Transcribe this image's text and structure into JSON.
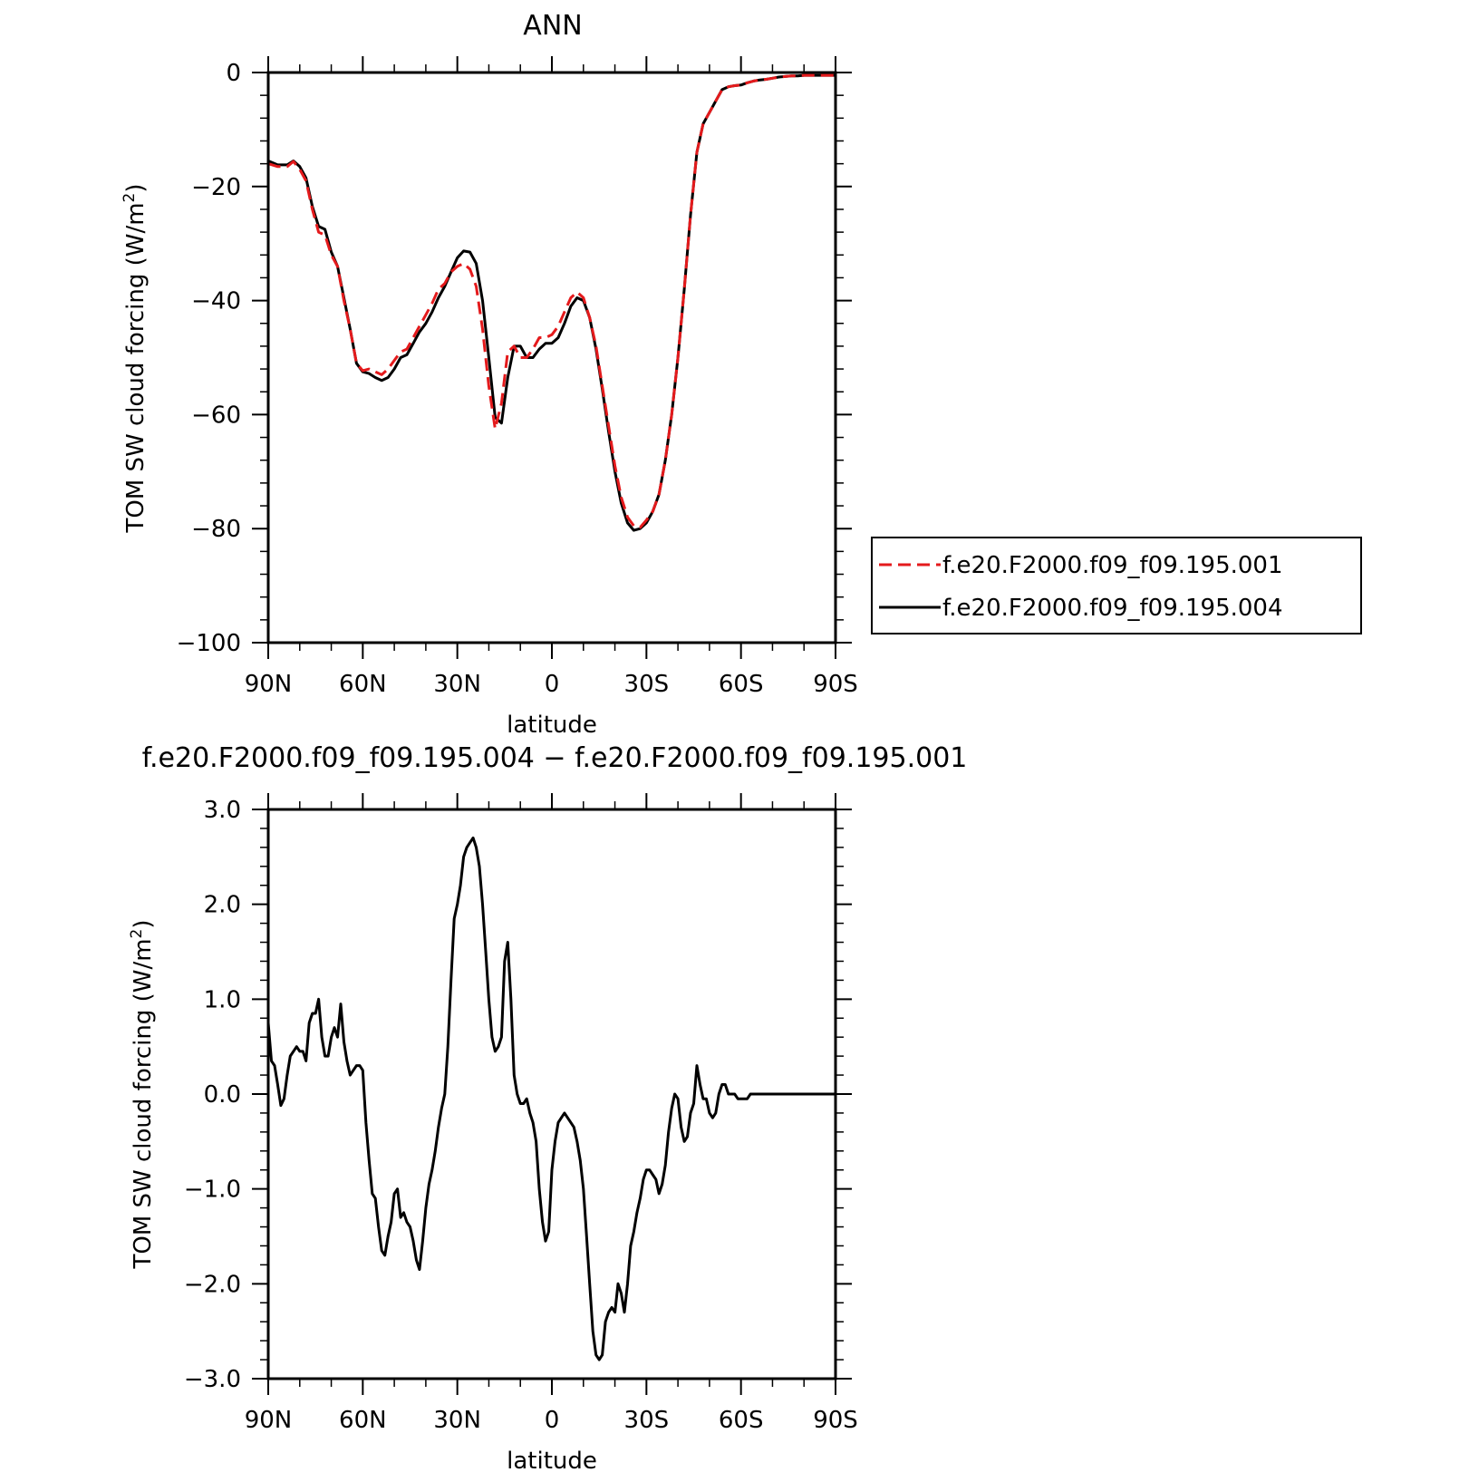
{
  "chart_data": [
    {
      "type": "line",
      "title": "ANN",
      "xlabel": "latitude",
      "ylabel": "TOM SW cloud forcing (W/m²)",
      "ylabel_main": "TOM SW cloud forcing (W/m",
      "ylabel_sup": "2",
      "ylabel_close": ")",
      "xlim": [
        90,
        -90
      ],
      "ylim": [
        -100,
        0
      ],
      "x_ticks": [
        90,
        60,
        30,
        0,
        -30,
        -60,
        -90
      ],
      "x_tick_labels": [
        "90N",
        "60N",
        "30N",
        "0",
        "30S",
        "60S",
        "90S"
      ],
      "y_ticks": [
        0,
        -20,
        -40,
        -60,
        -80,
        -100
      ],
      "y_tick_labels": [
        "0",
        "−20",
        "−40",
        "−60",
        "−80",
        "−100"
      ],
      "legend_position": "right",
      "series": [
        {
          "name": "f.e20.F2000.f09_f09.195.001",
          "color": "#e41a1c",
          "style": "dashed",
          "x": [
            90,
            87,
            84,
            82,
            80,
            78,
            76,
            74,
            72,
            70,
            68,
            66,
            64,
            62,
            60,
            58,
            56,
            54,
            52,
            50,
            48,
            46,
            44,
            42,
            40,
            38,
            36,
            34,
            32,
            30,
            28,
            26,
            24,
            22,
            20,
            18,
            16,
            14,
            12,
            10,
            8,
            6,
            4,
            2,
            0,
            -2,
            -4,
            -6,
            -8,
            -10,
            -12,
            -14,
            -16,
            -18,
            -20,
            -22,
            -24,
            -26,
            -28,
            -30,
            -32,
            -34,
            -36,
            -38,
            -40,
            -42,
            -44,
            -46,
            -48,
            -50,
            -52,
            -54,
            -56,
            -58,
            -60,
            -62,
            -64,
            -66,
            -68,
            -70,
            -72,
            -74,
            -76,
            -78,
            -80,
            -82,
            -84,
            -86,
            -88,
            -90
          ],
          "y": [
            -16,
            -16.5,
            -16.5,
            -15.6,
            -17,
            -19,
            -24,
            -28,
            -28.5,
            -32,
            -34,
            -40,
            -45,
            -51,
            -52.3,
            -52,
            -52.5,
            -53,
            -52,
            -50.5,
            -49,
            -48.5,
            -46.5,
            -44.5,
            -42.5,
            -40.5,
            -38,
            -37,
            -35,
            -34,
            -33.5,
            -34.5,
            -37.5,
            -45,
            -55,
            -62.5,
            -58,
            -49,
            -48,
            -50,
            -50,
            -48.5,
            -46.5,
            -46.5,
            -46,
            -44.5,
            -42,
            -39.5,
            -38.5,
            -39.5,
            -43,
            -48,
            -55,
            -62,
            -69,
            -74.5,
            -78,
            -79.5,
            -79.8,
            -78.5,
            -77,
            -74,
            -68,
            -60,
            -50,
            -38,
            -25,
            -14,
            -9,
            -7,
            -5,
            -3,
            -2.5,
            -2.3,
            -2.2,
            -1.8,
            -1.5,
            -1.3,
            -1.2,
            -1.0,
            -0.8,
            -0.7,
            -0.6,
            -0.6,
            -0.5,
            -0.5,
            -0.5,
            -0.5,
            -0.5,
            -0.5
          ]
        },
        {
          "name": "f.e20.F2000.f09_f09.195.004",
          "color": "#000000",
          "style": "solid",
          "x": [
            90,
            87,
            84,
            82,
            80,
            78,
            76,
            74,
            72,
            70,
            68,
            66,
            64,
            62,
            60,
            58,
            56,
            54,
            52,
            50,
            48,
            46,
            44,
            42,
            40,
            38,
            36,
            34,
            32,
            30,
            28,
            26,
            24,
            22,
            20,
            18,
            16,
            14,
            12,
            10,
            8,
            6,
            4,
            2,
            0,
            -2,
            -4,
            -6,
            -8,
            -10,
            -12,
            -14,
            -16,
            -18,
            -20,
            -22,
            -24,
            -26,
            -28,
            -30,
            -32,
            -34,
            -36,
            -38,
            -40,
            -42,
            -44,
            -46,
            -48,
            -50,
            -52,
            -54,
            -56,
            -58,
            -60,
            -62,
            -64,
            -66,
            -68,
            -70,
            -72,
            -74,
            -76,
            -78,
            -80,
            -82,
            -84,
            -86,
            -88,
            -90
          ],
          "y": [
            -15.5,
            -16.2,
            -16.2,
            -15.5,
            -16.5,
            -18.5,
            -23.5,
            -27,
            -27.5,
            -31.5,
            -34,
            -39.5,
            -45,
            -51,
            -52.5,
            -52.8,
            -53.5,
            -54,
            -53.5,
            -52,
            -50,
            -49.5,
            -47.5,
            -45.5,
            -44,
            -42,
            -39.5,
            -37.5,
            -35,
            -32.5,
            -31.3,
            -31.5,
            -33.5,
            -40,
            -50,
            -60.5,
            -61.5,
            -53.5,
            -48,
            -48,
            -50,
            -50,
            -48.5,
            -47.5,
            -47.5,
            -46.5,
            -44,
            -41,
            -39.5,
            -40,
            -43,
            -48.5,
            -55.5,
            -63,
            -70,
            -75.5,
            -79,
            -80.3,
            -80,
            -79,
            -77,
            -74,
            -68,
            -60,
            -50,
            -38,
            -25,
            -14,
            -9,
            -7,
            -5,
            -3,
            -2.5,
            -2.3,
            -2.2,
            -1.8,
            -1.5,
            -1.3,
            -1.2,
            -1.0,
            -0.8,
            -0.7,
            -0.6,
            -0.6,
            -0.5,
            -0.5,
            -0.5,
            -0.5,
            -0.5,
            -0.5
          ]
        }
      ]
    },
    {
      "type": "line",
      "title": "f.e20.F2000.f09_f09.195.004 − f.e20.F2000.f09_f09.195.001",
      "xlabel": "latitude",
      "ylabel": "TOM SW cloud forcing (W/m²)",
      "ylabel_main": "TOM SW cloud forcing (W/m",
      "ylabel_sup": "2",
      "ylabel_close": ")",
      "xlim": [
        90,
        -90
      ],
      "ylim": [
        -3.0,
        3.0
      ],
      "x_ticks": [
        90,
        60,
        30,
        0,
        -30,
        -60,
        -90
      ],
      "x_tick_labels": [
        "90N",
        "60N",
        "30N",
        "0",
        "30S",
        "60S",
        "90S"
      ],
      "y_ticks": [
        3,
        2,
        1,
        0,
        -1,
        -2,
        -3
      ],
      "y_tick_labels": [
        "3.0",
        "2.0",
        "1.0",
        "0.0",
        "−1.0",
        "−2.0",
        "−3.0"
      ],
      "series": [
        {
          "color": "#000000",
          "style": "solid",
          "x": [
            90,
            89,
            88,
            87,
            86,
            85,
            84,
            83,
            82,
            81,
            80,
            79,
            78,
            77,
            76,
            75,
            74,
            73,
            72,
            71,
            70,
            69,
            68,
            67,
            66,
            65,
            64,
            63,
            62,
            61,
            60,
            59,
            58,
            57,
            56,
            55,
            54,
            53,
            52,
            51,
            50,
            49,
            48,
            47,
            46,
            45,
            44,
            43,
            42,
            41,
            40,
            39,
            38,
            37,
            36,
            35,
            34,
            33,
            32,
            31,
            30,
            29,
            28,
            27,
            26,
            25,
            24,
            23,
            22,
            21,
            20,
            19,
            18,
            17,
            16,
            15,
            14,
            13,
            12,
            11,
            10,
            9,
            8,
            7,
            6,
            5,
            4,
            3,
            2,
            1,
            0,
            -1,
            -2,
            -3,
            -4,
            -5,
            -6,
            -7,
            -8,
            -9,
            -10,
            -11,
            -12,
            -13,
            -14,
            -15,
            -16,
            -17,
            -18,
            -19,
            -20,
            -21,
            -22,
            -23,
            -24,
            -25,
            -26,
            -27,
            -28,
            -29,
            -30,
            -31,
            -32,
            -33,
            -34,
            -35,
            -36,
            -37,
            -38,
            -39,
            -40,
            -41,
            -42,
            -43,
            -44,
            -45,
            -46,
            -47,
            -48,
            -49,
            -50,
            -51,
            -52,
            -53,
            -54,
            -55,
            -56,
            -57,
            -58,
            -59,
            -60,
            -61,
            -62,
            -63,
            -64,
            -65,
            -66,
            -67,
            -68,
            -69,
            -70,
            -71,
            -72,
            -73,
            -74,
            -75,
            -76,
            -77,
            -78,
            -79,
            -80,
            -81,
            -82,
            -83,
            -84,
            -85,
            -86,
            -87,
            -88,
            -89,
            -90
          ],
          "y": [
            0.75,
            0.35,
            0.3,
            0.1,
            -0.12,
            -0.05,
            0.2,
            0.4,
            0.45,
            0.5,
            0.45,
            0.45,
            0.35,
            0.75,
            0.85,
            0.85,
            1.0,
            0.6,
            0.4,
            0.4,
            0.6,
            0.7,
            0.6,
            0.95,
            0.55,
            0.35,
            0.2,
            0.25,
            0.3,
            0.3,
            0.25,
            -0.3,
            -0.7,
            -1.05,
            -1.1,
            -1.4,
            -1.65,
            -1.7,
            -1.5,
            -1.35,
            -1.05,
            -1.0,
            -1.3,
            -1.25,
            -1.35,
            -1.4,
            -1.55,
            -1.75,
            -1.85,
            -1.55,
            -1.2,
            -0.95,
            -0.8,
            -0.6,
            -0.35,
            -0.15,
            0.0,
            0.5,
            1.2,
            1.85,
            2.0,
            2.2,
            2.5,
            2.6,
            2.65,
            2.7,
            2.6,
            2.4,
            2.0,
            1.5,
            1.0,
            0.6,
            0.45,
            0.5,
            0.6,
            1.4,
            1.6,
            1.0,
            0.2,
            0.0,
            -0.1,
            -0.1,
            -0.05,
            -0.2,
            -0.3,
            -0.5,
            -1.0,
            -1.35,
            -1.55,
            -1.45,
            -0.8,
            -0.5,
            -0.3,
            -0.25,
            -0.2,
            -0.25,
            -0.3,
            -0.35,
            -0.5,
            -0.7,
            -1.0,
            -1.5,
            -2.0,
            -2.5,
            -2.75,
            -2.8,
            -2.75,
            -2.4,
            -2.3,
            -2.25,
            -2.3,
            -2.0,
            -2.1,
            -2.3,
            -2.0,
            -1.6,
            -1.45,
            -1.25,
            -1.1,
            -0.9,
            -0.8,
            -0.8,
            -0.85,
            -0.9,
            -1.05,
            -0.95,
            -0.75,
            -0.4,
            -0.15,
            0.0,
            -0.05,
            -0.35,
            -0.5,
            -0.45,
            -0.2,
            -0.1,
            0.3,
            0.1,
            -0.05,
            -0.05,
            -0.2,
            -0.25,
            -0.2,
            0.0,
            0.1,
            0.1,
            0.0,
            0.0,
            0.0,
            -0.05,
            -0.05,
            -0.05,
            -0.05,
            0.0,
            0.0,
            0.0,
            0.0,
            0.0,
            0.0,
            0.0,
            0.0,
            0.0,
            0.0,
            0.0,
            0.0,
            0.0,
            0.0,
            0.0,
            0.0,
            0.0,
            0.0,
            0.0,
            0.0,
            0.0,
            0.0,
            0.0,
            0.0,
            0.0,
            0.0,
            0.0,
            0.0
          ]
        }
      ]
    }
  ]
}
